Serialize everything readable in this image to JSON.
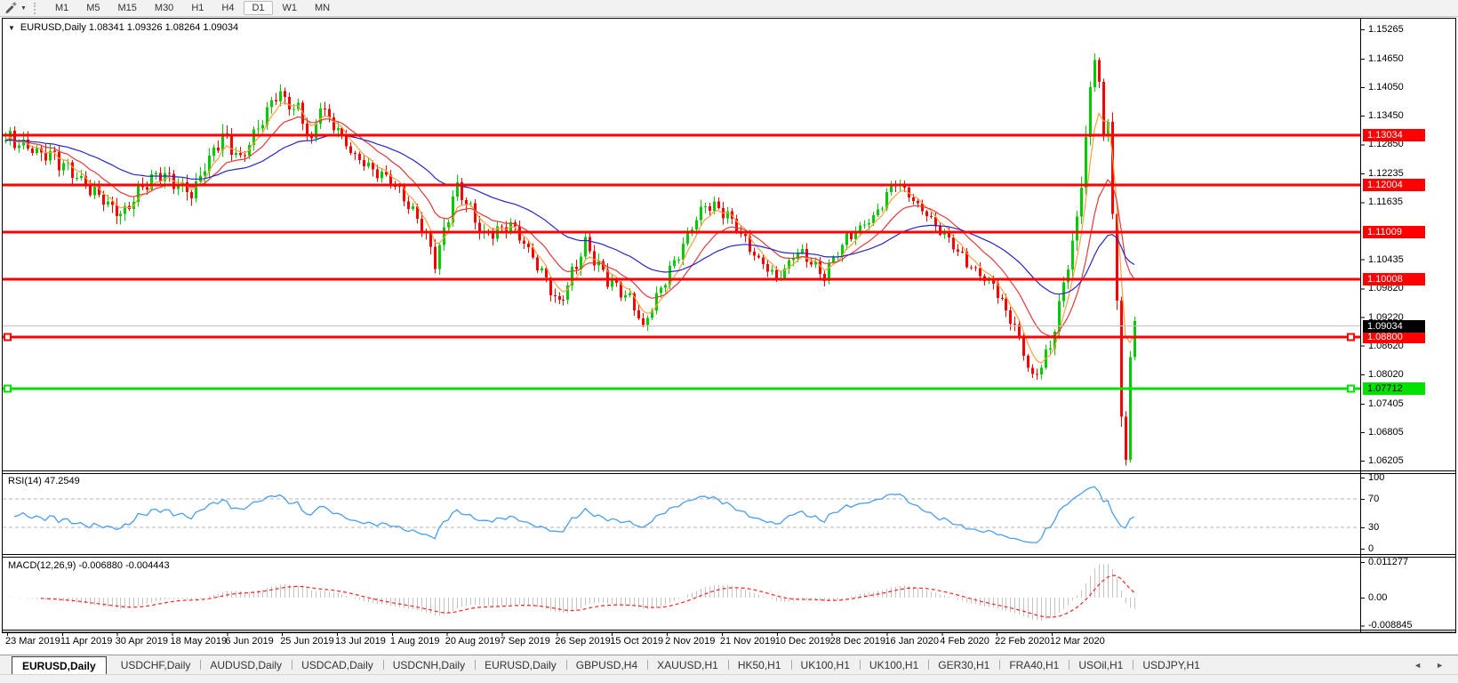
{
  "toolbar": {
    "timeframes": [
      "M1",
      "M5",
      "M15",
      "M30",
      "H1",
      "H4",
      "D1",
      "W1",
      "MN"
    ],
    "active_timeframe": "D1"
  },
  "window": {
    "collapse_icon": "▼",
    "title": "EURUSD,Daily  1.08341 1.09326 1.08264 1.09034",
    "symbol": "EURUSD",
    "period": "Daily"
  },
  "rsi_panel": {
    "label_full": "RSI(14) 47.2549",
    "name": "RSI",
    "period": 14,
    "value": "47.2549"
  },
  "macd_panel": {
    "label_full": "MACD(12,26,9) -0.006880 -0.004443",
    "name": "MACD",
    "params": "12,26,9",
    "values": "-0.006880 -0.004443"
  },
  "date_axis": [
    "23 Mar 2019",
    "11 Apr 2019",
    "30 Apr 2019",
    "18 May 2019",
    "6 Jun 2019",
    "25 Jun 2019",
    "13 Jul 2019",
    "1 Aug 2019",
    "20 Aug 2019",
    "7 Sep 2019",
    "26 Sep 2019",
    "15 Oct 2019",
    "2 Nov 2019",
    "21 Nov 2019",
    "10 Dec 2019",
    "28 Dec 2019",
    "16 Jan 2020",
    "4 Feb 2020",
    "22 Feb 2020",
    "12 Mar 2020"
  ],
  "tabs": {
    "items": [
      "EURUSD,Daily",
      "USDCHF,Daily",
      "AUDUSD,Daily",
      "USDCAD,Daily",
      "USDCNH,Daily",
      "EURUSD,Daily",
      "GBPUSD,H4",
      "XAUUSD,H1",
      "HK50,H1",
      "UK100,H1",
      "UK100,H1",
      "GER30,H1",
      "FRA40,H1",
      "USOil,H1",
      "USDJPY,H1"
    ],
    "active_index": 0,
    "scroll_left_icon": "◄",
    "scroll_right_icon": "►"
  },
  "chart_data": {
    "type": "candlestick",
    "symbol": "EURUSD",
    "timeframe": "Daily",
    "last_bar_ohlc": {
      "open": "1.08341",
      "high": "1.09326",
      "low": "1.08264",
      "close": "1.09034"
    },
    "ylim": [
      1.06018,
      1.15489
    ],
    "bars": 256,
    "price_axis_ticks": [
      "1.15265",
      "1.14650",
      "1.14050",
      "1.13450",
      "1.12850",
      "1.12235",
      "1.11635",
      "1.10435",
      "1.09820",
      "1.09220",
      "1.08620",
      "1.08020",
      "1.07405",
      "1.06805",
      "1.06205"
    ],
    "close_waypoints": [
      [
        0,
        1.13,
        0.0016
      ],
      [
        11,
        1.1255,
        0.0016
      ],
      [
        21,
        1.1175,
        0.0015
      ],
      [
        26,
        1.114,
        0.0015
      ],
      [
        34,
        1.1225,
        0.0015
      ],
      [
        42,
        1.118,
        0.0016
      ],
      [
        49,
        1.131,
        0.0018
      ],
      [
        53,
        1.125,
        0.0015
      ],
      [
        61,
        1.1395,
        0.0017
      ],
      [
        66,
        1.136,
        0.0014
      ],
      [
        69,
        1.129,
        0.0013
      ],
      [
        71,
        1.137,
        0.0013
      ],
      [
        79,
        1.126,
        0.0014
      ],
      [
        87,
        1.121,
        0.0013
      ],
      [
        93,
        1.113,
        0.0014
      ],
      [
        97,
        1.104,
        0.0016
      ],
      [
        102,
        1.12,
        0.0015
      ],
      [
        108,
        1.109,
        0.0014
      ],
      [
        114,
        1.112,
        0.0012
      ],
      [
        120,
        1.103,
        0.0012
      ],
      [
        125,
        1.095,
        0.0013
      ],
      [
        131,
        1.1075,
        0.0014
      ],
      [
        136,
        1.1,
        0.0013
      ],
      [
        141,
        1.096,
        0.0012
      ],
      [
        144,
        1.09,
        0.0012
      ],
      [
        151,
        1.104,
        0.0013
      ],
      [
        158,
        1.116,
        0.0013
      ],
      [
        163,
        1.114,
        0.0012
      ],
      [
        168,
        1.1065,
        0.0012
      ],
      [
        174,
        1.1,
        0.0011
      ],
      [
        179,
        1.106,
        0.0011
      ],
      [
        185,
        1.101,
        0.0011
      ],
      [
        190,
        1.109,
        0.0011
      ],
      [
        196,
        1.113,
        0.0011
      ],
      [
        201,
        1.121,
        0.0012
      ],
      [
        206,
        1.1155,
        0.0011
      ],
      [
        212,
        1.1095,
        0.001
      ],
      [
        218,
        1.1025,
        0.001
      ],
      [
        223,
        1.099,
        0.0012
      ],
      [
        228,
        1.09,
        0.0013
      ],
      [
        232,
        1.079,
        0.0013
      ],
      [
        236,
        1.086,
        0.0014
      ],
      [
        239,
        1.099,
        0.0016
      ],
      [
        242,
        1.112,
        0.002
      ],
      [
        244,
        1.131,
        0.0024
      ],
      [
        246,
        1.1465,
        0.0028
      ],
      [
        247,
        1.142,
        0.0018
      ],
      [
        248,
        1.129,
        0.0016
      ],
      [
        249,
        1.133,
        0.0014
      ],
      [
        250,
        1.115,
        0.002
      ],
      [
        251,
        1.095,
        0.0022
      ],
      [
        252,
        1.07,
        0.0022
      ],
      [
        253,
        1.064,
        0.0015
      ],
      [
        254,
        1.083,
        0.0015
      ],
      [
        255,
        1.0903,
        0.001
      ]
    ],
    "horizontal_lines": [
      {
        "price": 1.13034,
        "label": "1.13034",
        "color": "#ff0000",
        "selected": false
      },
      {
        "price": 1.12004,
        "label": "1.12004",
        "color": "#ff0000",
        "selected": false
      },
      {
        "price": 1.11009,
        "label": "1.11009",
        "color": "#ff0000",
        "selected": false
      },
      {
        "price": 1.10008,
        "label": "1.10008",
        "color": "#ff0000",
        "selected": false
      },
      {
        "price": 1.088,
        "label": "1.08800",
        "color": "#ff0000",
        "selected": true
      },
      {
        "price": 1.07712,
        "label": "1.07712",
        "color": "#00e100",
        "selected": true,
        "text_color": "#000000"
      }
    ],
    "current_price": {
      "value": 1.09034,
      "label": "1.09034",
      "badge_color": "#000000",
      "line_color": "#c0c0c0"
    },
    "overlays": [
      {
        "name": "fast MA",
        "period": 5,
        "color": "#ff9f3d"
      },
      {
        "name": "medium MA",
        "period": 14,
        "color": "#e23a3a"
      },
      {
        "name": "slow MA",
        "period": 40,
        "color": "#2525cc"
      }
    ],
    "rsi": {
      "period": 14,
      "value": 47.2549,
      "axis_ticks": [
        100,
        70,
        30,
        0
      ],
      "levels": [
        70,
        30
      ],
      "color": "#4a9ef0",
      "level_color": "#b3b3b3"
    },
    "macd": {
      "fast": 12,
      "slow": 26,
      "signal": 9,
      "main_value": -0.00688,
      "signal_value": -0.004443,
      "axis_ticks": [
        "0.011277",
        "0.00",
        "-0.008845"
      ],
      "histogram_color": "#c4c4c4",
      "signal_color": "#ff2222"
    },
    "colors": {
      "candle_up": "#00cc00",
      "candle_down": "#ff0000",
      "background": "#ffffff",
      "border": "#000000"
    }
  }
}
